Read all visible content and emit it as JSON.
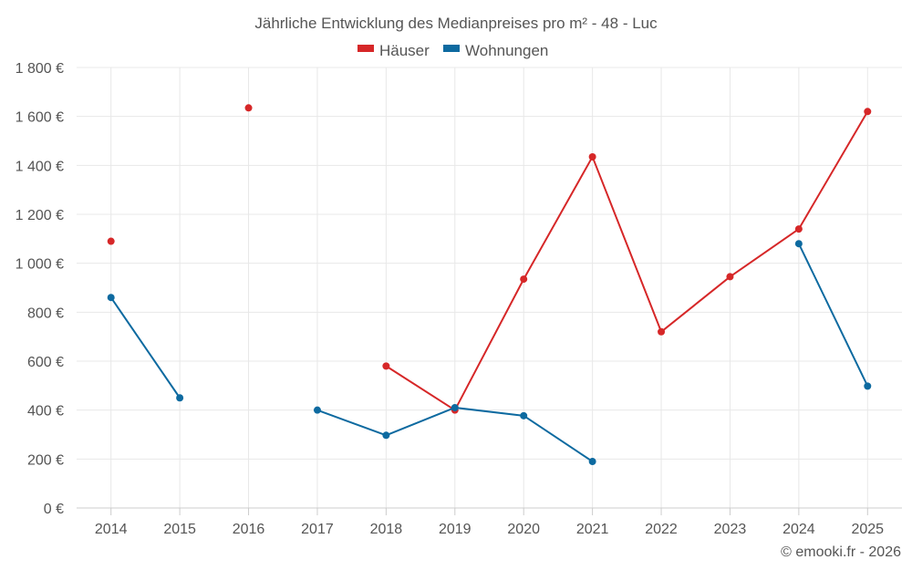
{
  "chart_data": {
    "type": "line",
    "title": "Jährliche Entwicklung des Medianpreises pro m² - 48 - Luc",
    "categories": [
      "2014",
      "2015",
      "2016",
      "2017",
      "2018",
      "2019",
      "2020",
      "2021",
      "2022",
      "2023",
      "2024",
      "2025"
    ],
    "series": [
      {
        "name": "Häuser",
        "color": "#d62728",
        "values": [
          1090,
          null,
          1635,
          null,
          580,
          400,
          935,
          1435,
          720,
          945,
          1140,
          1620
        ]
      },
      {
        "name": "Wohnungen",
        "color": "#0d6aa0",
        "values": [
          860,
          450,
          null,
          400,
          297,
          410,
          377,
          190,
          null,
          null,
          1080,
          498
        ]
      }
    ],
    "ylim": [
      0,
      1800
    ],
    "yticks": [
      0,
      200,
      400,
      600,
      800,
      1000,
      1200,
      1400,
      1600,
      1800
    ],
    "ytick_labels": [
      "0 €",
      "200 €",
      "400 €",
      "600 €",
      "800 €",
      "1 000 €",
      "1 200 €",
      "1 400 €",
      "1 600 €",
      "1 800 €"
    ],
    "xlabel": "",
    "ylabel": "",
    "grid": true,
    "legend": "top-center"
  },
  "footer": {
    "copyright": "© emooki.fr - 2026"
  }
}
